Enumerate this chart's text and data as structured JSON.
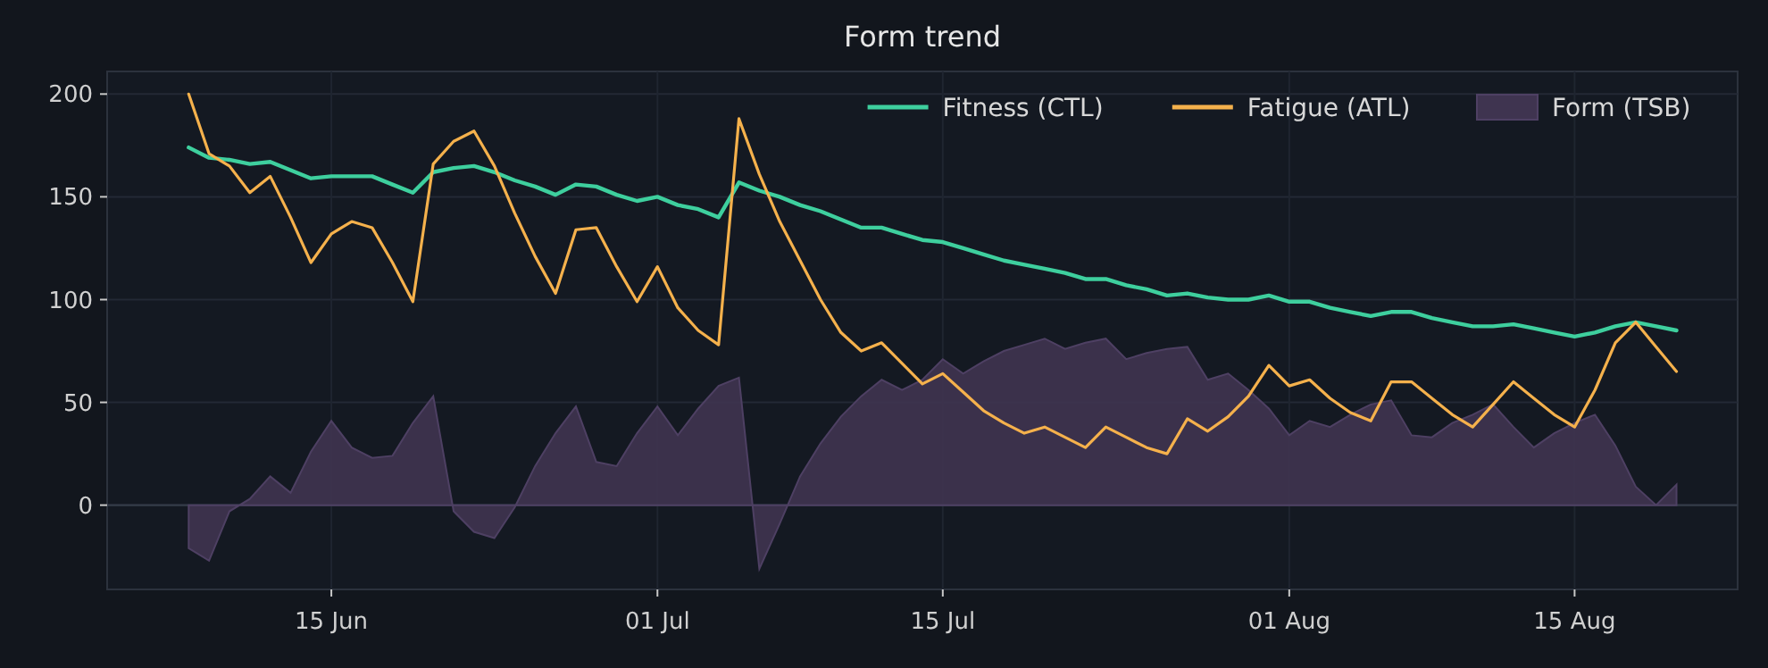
{
  "chart_data": {
    "type": "line",
    "title": "Form trend",
    "x": [
      "--06-08",
      "--06-09",
      "--06-10",
      "--06-11",
      "--06-12",
      "--06-13",
      "--06-14",
      "--06-15",
      "--06-16",
      "--06-17",
      "--06-18",
      "--06-19",
      "--06-20",
      "--06-21",
      "--06-22",
      "--06-23",
      "--06-24",
      "--06-25",
      "--06-26",
      "--06-27",
      "--06-28",
      "--06-29",
      "--06-30",
      "--07-01",
      "--07-02",
      "--07-03",
      "--07-04",
      "--07-05",
      "--07-06",
      "--07-07",
      "--07-08",
      "--07-09",
      "--07-10",
      "--07-11",
      "--07-12",
      "--07-13",
      "--07-14",
      "--07-15",
      "--07-16",
      "--07-17",
      "--07-18",
      "--07-19",
      "--07-20",
      "--07-21",
      "--07-22",
      "--07-23",
      "--07-24",
      "--07-25",
      "--07-26",
      "--07-27",
      "--07-28",
      "--07-29",
      "--07-30",
      "--07-31",
      "--08-01",
      "--08-02",
      "--08-03",
      "--08-04",
      "--08-05",
      "--08-06",
      "--08-07",
      "--08-08",
      "--08-09",
      "--08-10",
      "--08-11",
      "--08-12",
      "--08-13",
      "--08-14",
      "--08-15",
      "--08-16",
      "--08-17",
      "--08-18",
      "--08-19",
      "--08-20"
    ],
    "series": [
      {
        "name": "Fitness (CTL)",
        "color": "#3ecf9e",
        "values": [
          174,
          169,
          168,
          166,
          167,
          163,
          159,
          160,
          160,
          160,
          156,
          152,
          162,
          164,
          165,
          162,
          158,
          155,
          151,
          156,
          155,
          151,
          148,
          150,
          146,
          144,
          140,
          157,
          153,
          150,
          146,
          143,
          139,
          135,
          135,
          132,
          129,
          128,
          125,
          122,
          119,
          117,
          115,
          113,
          110,
          110,
          107,
          105,
          102,
          103,
          101,
          100,
          100,
          102,
          99,
          99,
          96,
          94,
          92,
          94,
          94,
          91,
          89,
          87,
          87,
          88,
          86,
          84,
          82,
          84,
          87,
          89,
          87,
          85
        ]
      },
      {
        "name": "Fatigue (ATL)",
        "color": "#f5b14c",
        "values": [
          200,
          171,
          165,
          152,
          160,
          140,
          118,
          132,
          138,
          135,
          118,
          99,
          166,
          177,
          182,
          165,
          142,
          121,
          103,
          134,
          135,
          116,
          99,
          116,
          96,
          85,
          78,
          188,
          161,
          138,
          119,
          100,
          84,
          75,
          79,
          69,
          59,
          64,
          55,
          46,
          40,
          35,
          38,
          33,
          28,
          38,
          33,
          28,
          25,
          42,
          36,
          43,
          53,
          68,
          58,
          61,
          52,
          45,
          41,
          60,
          60,
          52,
          44,
          38,
          49,
          60,
          52,
          44,
          38,
          56,
          79,
          89,
          77,
          65
        ]
      },
      {
        "name": "Form (TSB)",
        "type": "area",
        "color": "#3f3450",
        "values": [
          -21,
          -27,
          -3,
          3,
          14,
          6,
          26,
          41,
          28,
          23,
          24,
          40,
          53,
          -3,
          -13,
          -16,
          -1,
          19,
          35,
          48,
          21,
          19,
          35,
          48,
          34,
          47,
          58,
          62,
          -31,
          -9,
          14,
          30,
          43,
          53,
          61,
          56,
          61,
          71,
          64,
          70,
          75,
          78,
          81,
          76,
          79,
          81,
          71,
          74,
          76,
          77,
          61,
          64,
          56,
          47,
          34,
          41,
          38,
          44,
          49,
          51,
          34,
          33,
          40,
          44,
          49,
          38,
          28,
          35,
          40,
          44,
          29,
          9,
          0,
          10
        ]
      }
    ],
    "xlim": [
      "--06-04",
      "--08-23"
    ],
    "xticks": [
      {
        "value": "--06-15",
        "label": "15 Jun"
      },
      {
        "value": "--07-01",
        "label": "01 Jul"
      },
      {
        "value": "--07-15",
        "label": "15 Jul"
      },
      {
        "value": "--08-01",
        "label": "01 Aug"
      },
      {
        "value": "--08-15",
        "label": "15 Aug"
      }
    ],
    "ylim": [
      -41,
      211
    ],
    "yticks": [
      0,
      50,
      100,
      150,
      200
    ],
    "grid": true,
    "legend": "top right",
    "marker": "none",
    "line_style": "solid"
  }
}
